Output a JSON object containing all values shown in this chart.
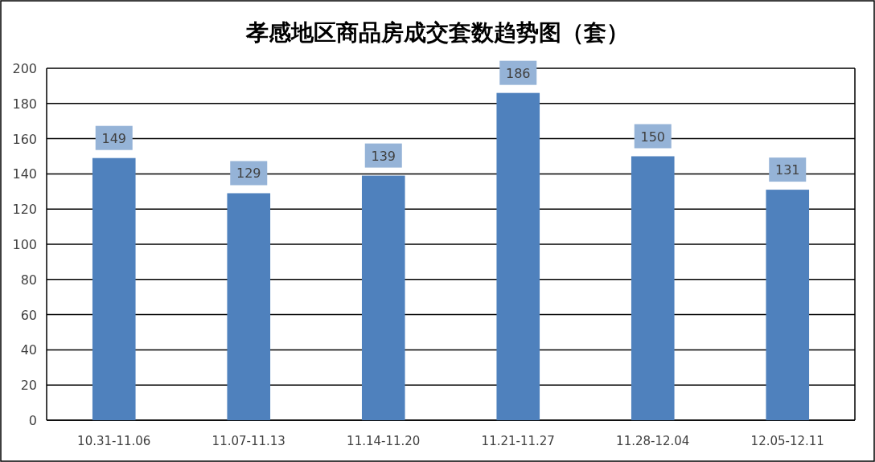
{
  "chart_data": {
    "type": "bar",
    "title": "孝感地区商品房成交套数趋势图（套）",
    "categories": [
      "10.31-11.06",
      "11.07-11.13",
      "11.14-11.20",
      "11.21-11.27",
      "11.28-12.04",
      "12.05-12.11"
    ],
    "values": [
      149,
      129,
      139,
      186,
      150,
      131
    ],
    "color": "#4f81bd",
    "ylim": [
      0,
      200
    ],
    "yticks": [
      0,
      20,
      40,
      60,
      80,
      100,
      120,
      140,
      160,
      180,
      200
    ],
    "grid": "y",
    "data_labels": true
  }
}
